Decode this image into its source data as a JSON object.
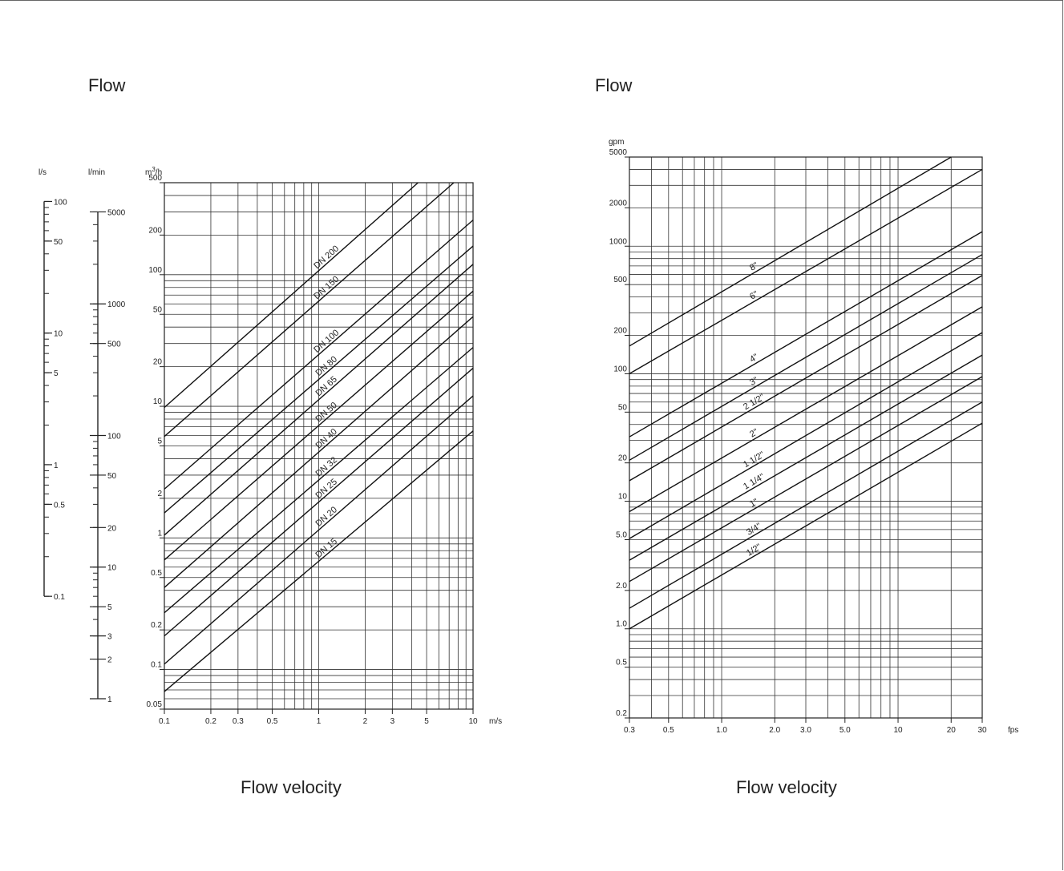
{
  "left_panel": {
    "heading": "Flow",
    "footer": "Flow velocity"
  },
  "right_panel": {
    "heading": "Flow",
    "footer": "Flow velocity"
  },
  "chart_data": [
    {
      "type": "line",
      "title": "",
      "xlabel": "Flow velocity",
      "x_unit": "m/s",
      "xscale": "log",
      "yscale": "log",
      "xlim": [
        0.1,
        10
      ],
      "ylim": [
        0.05,
        500
      ],
      "x_ticks": [
        {
          "v": 0.1,
          "label": "0.1"
        },
        {
          "v": 0.2,
          "label": "0.2"
        },
        {
          "v": 0.3,
          "label": "0.3"
        },
        {
          "v": 0.5,
          "label": "0.5"
        },
        {
          "v": 1,
          "label": "1"
        },
        {
          "v": 2,
          "label": "2"
        },
        {
          "v": 3,
          "label": "3"
        },
        {
          "v": 5,
          "label": "5"
        },
        {
          "v": 10,
          "label": "10"
        }
      ],
      "y_unit": "m3/h",
      "y_ticks": [
        {
          "v": 0.05,
          "label": "0.05"
        },
        {
          "v": 0.1,
          "label": "0.1"
        },
        {
          "v": 0.2,
          "label": "0.2"
        },
        {
          "v": 0.5,
          "label": "0.5"
        },
        {
          "v": 1,
          "label": "1"
        },
        {
          "v": 2,
          "label": "2"
        },
        {
          "v": 5,
          "label": "5"
        },
        {
          "v": 10,
          "label": "10"
        },
        {
          "v": 20,
          "label": "20"
        },
        {
          "v": 50,
          "label": "50"
        },
        {
          "v": 100,
          "label": "100"
        },
        {
          "v": 200,
          "label": "200"
        },
        {
          "v": 500,
          "label": "500"
        }
      ],
      "aux_axes": [
        {
          "unit": "l/s",
          "factor": 3.6,
          "ticks": [
            {
              "v": 100,
              "label": "100"
            },
            {
              "v": 50,
              "label": "50"
            },
            {
              "v": 10,
              "label": "10"
            },
            {
              "v": 5,
              "label": "5"
            },
            {
              "v": 1,
              "label": "1"
            },
            {
              "v": 0.5,
              "label": "0.5"
            },
            {
              "v": 0.1,
              "label": "0.1"
            }
          ]
        },
        {
          "unit": "l/min",
          "factor": 0.06,
          "ticks": [
            {
              "v": 5000,
              "label": "5000"
            },
            {
              "v": 1000,
              "label": "1000"
            },
            {
              "v": 500,
              "label": "500"
            },
            {
              "v": 100,
              "label": "100"
            },
            {
              "v": 50,
              "label": "50"
            },
            {
              "v": 20,
              "label": "20"
            },
            {
              "v": 10,
              "label": "10"
            },
            {
              "v": 5,
              "label": "5"
            },
            {
              "v": 3,
              "label": "3"
            },
            {
              "v": 2,
              "label": "2"
            },
            {
              "v": 1,
              "label": "1"
            }
          ]
        }
      ],
      "series": [
        {
          "name": "DN 200",
          "x": [
            0.1,
            4.4
          ],
          "y": [
            9.8,
            500
          ]
        },
        {
          "name": "DN 150",
          "x": [
            0.1,
            7.5
          ],
          "y": [
            5.9,
            500
          ]
        },
        {
          "name": "DN 100",
          "x": [
            0.1,
            10
          ],
          "y": [
            2.35,
            260
          ]
        },
        {
          "name": "DN 80",
          "x": [
            0.1,
            10
          ],
          "y": [
            1.55,
            165
          ]
        },
        {
          "name": "DN 65",
          "x": [
            0.1,
            10
          ],
          "y": [
            1.05,
            120
          ]
        },
        {
          "name": "DN 50",
          "x": [
            0.1,
            10
          ],
          "y": [
            0.68,
            75
          ]
        },
        {
          "name": "DN 40",
          "x": [
            0.1,
            10
          ],
          "y": [
            0.42,
            48
          ]
        },
        {
          "name": "DN 32",
          "x": [
            0.1,
            10
          ],
          "y": [
            0.27,
            28
          ]
        },
        {
          "name": "DN 25",
          "x": [
            0.1,
            10
          ],
          "y": [
            0.18,
            19.5
          ]
        },
        {
          "name": "DN 20",
          "x": [
            0.1,
            10
          ],
          "y": [
            0.11,
            12
          ]
        },
        {
          "name": "DN 15",
          "x": [
            0.1,
            10
          ],
          "y": [
            0.068,
            6.5
          ]
        }
      ]
    },
    {
      "type": "line",
      "title": "",
      "xlabel": "Flow velocity",
      "x_unit": "fps",
      "xscale": "log",
      "yscale": "log",
      "xlim": [
        0.3,
        30
      ],
      "ylim": [
        0.2,
        5000
      ],
      "x_ticks": [
        {
          "v": 0.3,
          "label": "0.3"
        },
        {
          "v": 0.5,
          "label": "0.5"
        },
        {
          "v": 1,
          "label": "1.0"
        },
        {
          "v": 2,
          "label": "2.0"
        },
        {
          "v": 3,
          "label": "3.0"
        },
        {
          "v": 5,
          "label": "5.0"
        },
        {
          "v": 10,
          "label": "10"
        },
        {
          "v": 20,
          "label": "20"
        },
        {
          "v": 30,
          "label": "30"
        }
      ],
      "y_unit": "gpm",
      "y_ticks": [
        {
          "v": 0.2,
          "label": "0.2"
        },
        {
          "v": 0.5,
          "label": "0.5"
        },
        {
          "v": 1,
          "label": "1.0"
        },
        {
          "v": 2,
          "label": "2.0"
        },
        {
          "v": 5,
          "label": "5.0"
        },
        {
          "v": 10,
          "label": "10"
        },
        {
          "v": 20,
          "label": "20"
        },
        {
          "v": 50,
          "label": "50"
        },
        {
          "v": 100,
          "label": "100"
        },
        {
          "v": 200,
          "label": "200"
        },
        {
          "v": 500,
          "label": "500"
        },
        {
          "v": 1000,
          "label": "1000"
        },
        {
          "v": 2000,
          "label": "2000"
        },
        {
          "v": 5000,
          "label": "5000"
        }
      ],
      "series": [
        {
          "name": "8\"",
          "x": [
            0.3,
            20
          ],
          "y": [
            165,
            5000
          ]
        },
        {
          "name": "6\"",
          "x": [
            0.3,
            30
          ],
          "y": [
            100,
            4000
          ]
        },
        {
          "name": "4\"",
          "x": [
            0.3,
            30
          ],
          "y": [
            32,
            1300
          ]
        },
        {
          "name": "3\"",
          "x": [
            0.3,
            30
          ],
          "y": [
            21,
            860
          ]
        },
        {
          "name": "2 1/2\"",
          "x": [
            0.3,
            30
          ],
          "y": [
            14.5,
            590
          ]
        },
        {
          "name": "2\"",
          "x": [
            0.3,
            30
          ],
          "y": [
            8.3,
            335
          ]
        },
        {
          "name": "1 1/2\"",
          "x": [
            0.3,
            30
          ],
          "y": [
            5.1,
            210
          ]
        },
        {
          "name": "1 1/4\"",
          "x": [
            0.3,
            30
          ],
          "y": [
            3.45,
            140
          ]
        },
        {
          "name": "1\"",
          "x": [
            0.3,
            30
          ],
          "y": [
            2.35,
            95
          ]
        },
        {
          "name": "3/4\"",
          "x": [
            0.3,
            30
          ],
          "y": [
            1.45,
            60
          ]
        },
        {
          "name": "1/2\"",
          "x": [
            0.3,
            30
          ],
          "y": [
            1.0,
            41
          ]
        }
      ]
    }
  ]
}
